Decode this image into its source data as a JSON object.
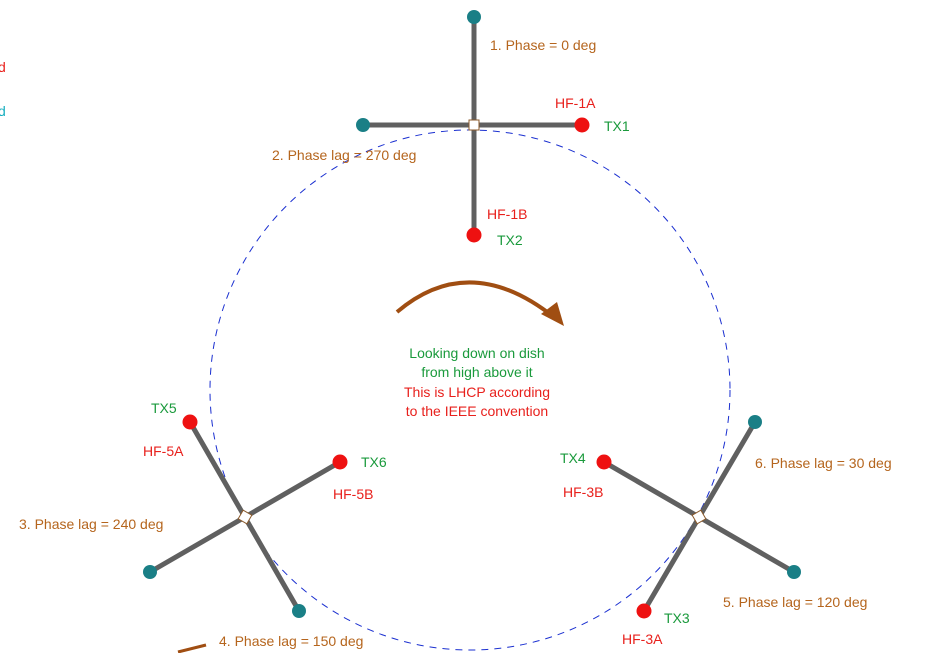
{
  "colors": {
    "arm": "#606060",
    "hot_end": "#ee1111",
    "cold_end": "#1a7f86",
    "circle": "#1a2fd0",
    "arrow": "#a04e12",
    "phase_text": "#b5651d",
    "hf_text": "#e8201c",
    "tx_text": "#1a9a3c"
  },
  "legend": {
    "partial_red": "d",
    "partial_cyan": "d"
  },
  "phases": {
    "p1": "1. Phase = 0 deg",
    "p2": "2. Phase lag = 270 deg",
    "p3": "3. Phase lag = 240 deg",
    "p4": "4. Phase lag = 150 deg",
    "p5": "5. Phase lag = 120 deg",
    "p6": "6. Phase lag = 30 deg"
  },
  "feeds": {
    "hf1a": "HF-1A",
    "hf1b": "HF-1B",
    "hf3a": "HF-3A",
    "hf3b": "HF-3B",
    "hf5a": "HF-5A",
    "hf5b": "HF-5B"
  },
  "transmitters": {
    "tx1": "TX1",
    "tx2": "TX2",
    "tx3": "TX3",
    "tx4": "TX4",
    "tx5": "TX5",
    "tx6": "TX6"
  },
  "center_note": {
    "line1": "Looking down on dish",
    "line2": "from high above it",
    "line3": "This is LHCP according",
    "line4": "to the IEEE convention"
  }
}
